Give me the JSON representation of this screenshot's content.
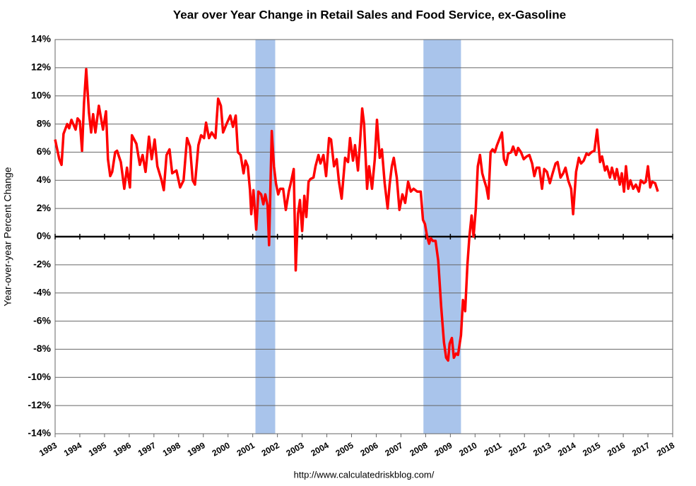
{
  "chart_data": {
    "type": "line",
    "title": "Year over Year Change in Retail Sales and Food Service, ex-Gasoline",
    "y_label": "Year-over-year Percent Change",
    "source": "http://www.calculatedriskblog.com/",
    "color": "#ff0000",
    "recession_color": "#a9c4eb",
    "recessions": [
      [
        2001.11,
        2001.91
      ],
      [
        2007.91,
        2009.43
      ]
    ],
    "grid": true,
    "xlim": [
      1993,
      2018
    ],
    "xticks": [
      1993,
      1994,
      1995,
      1996,
      1997,
      1998,
      1999,
      2000,
      2001,
      2002,
      2003,
      2004,
      2005,
      2006,
      2007,
      2008,
      2009,
      2010,
      2011,
      2012,
      2013,
      2014,
      2015,
      2016,
      2017,
      2018
    ],
    "ylim": [
      -14,
      14
    ],
    "yticks": [
      {
        "value": -14,
        "label": "-14%"
      },
      {
        "value": -12,
        "label": "-12%"
      },
      {
        "value": -10,
        "label": "-10%"
      },
      {
        "value": -8,
        "label": "-8%"
      },
      {
        "value": -6,
        "label": "-6%"
      },
      {
        "value": -4,
        "label": "-4%"
      },
      {
        "value": -2,
        "label": "-2%"
      },
      {
        "value": 0,
        "label": "0%"
      },
      {
        "value": 2,
        "label": "2%"
      },
      {
        "value": 4,
        "label": "4%"
      },
      {
        "value": 6,
        "label": "6%"
      },
      {
        "value": 8,
        "label": "8%"
      },
      {
        "value": 10,
        "label": "10%"
      },
      {
        "value": 12,
        "label": "12%"
      },
      {
        "value": 14,
        "label": "14%"
      }
    ],
    "x": [
      1993.0,
      1993.17,
      1993.26,
      1993.34,
      1993.49,
      1993.57,
      1993.66,
      1993.83,
      1993.91,
      1994.0,
      1994.09,
      1994.17,
      1994.26,
      1994.37,
      1994.46,
      1994.54,
      1994.63,
      1994.77,
      1994.94,
      1995.06,
      1995.14,
      1995.23,
      1995.31,
      1995.43,
      1995.51,
      1995.66,
      1995.8,
      1995.91,
      1996.03,
      1996.11,
      1996.29,
      1996.43,
      1996.54,
      1996.66,
      1996.8,
      1996.91,
      1997.03,
      1997.14,
      1997.31,
      1997.4,
      1997.51,
      1997.63,
      1997.74,
      1997.91,
      1998.06,
      1998.2,
      1998.34,
      1998.46,
      1998.57,
      1998.66,
      1998.8,
      1998.91,
      1999.03,
      1999.11,
      1999.23,
      1999.34,
      1999.49,
      1999.6,
      1999.71,
      1999.8,
      1999.94,
      2000.09,
      2000.2,
      2000.31,
      2000.4,
      2000.51,
      2000.63,
      2000.71,
      2000.8,
      2000.89,
      2000.94,
      2001.03,
      2001.14,
      2001.23,
      2001.34,
      2001.43,
      2001.51,
      2001.6,
      2001.66,
      2001.77,
      2001.86,
      2001.94,
      2002.03,
      2002.11,
      2002.23,
      2002.34,
      2002.46,
      2002.54,
      2002.66,
      2002.74,
      2002.83,
      2002.91,
      2003.0,
      2003.09,
      2003.17,
      2003.26,
      2003.34,
      2003.46,
      2003.54,
      2003.66,
      2003.74,
      2003.86,
      2003.97,
      2004.09,
      2004.17,
      2004.29,
      2004.4,
      2004.49,
      2004.6,
      2004.74,
      2004.86,
      2004.94,
      2005.06,
      2005.14,
      2005.26,
      2005.34,
      2005.43,
      2005.51,
      2005.63,
      2005.71,
      2005.83,
      2005.94,
      2006.03,
      2006.14,
      2006.23,
      2006.34,
      2006.46,
      2006.54,
      2006.63,
      2006.71,
      2006.83,
      2006.94,
      2007.06,
      2007.17,
      2007.29,
      2007.4,
      2007.51,
      2007.66,
      2007.8,
      2007.89,
      2007.97,
      2008.06,
      2008.14,
      2008.2,
      2008.29,
      2008.4,
      2008.51,
      2008.63,
      2008.74,
      2008.83,
      2008.91,
      2008.97,
      2009.06,
      2009.14,
      2009.23,
      2009.31,
      2009.43,
      2009.51,
      2009.6,
      2009.69,
      2009.77,
      2009.86,
      2009.94,
      2010.03,
      2010.11,
      2010.2,
      2010.29,
      2010.37,
      2010.46,
      2010.54,
      2010.63,
      2010.71,
      2010.8,
      2010.89,
      2011.0,
      2011.09,
      2011.17,
      2011.26,
      2011.34,
      2011.46,
      2011.54,
      2011.66,
      2011.74,
      2011.86,
      2011.97,
      2012.09,
      2012.2,
      2012.31,
      2012.4,
      2012.49,
      2012.6,
      2012.71,
      2012.8,
      2012.91,
      2013.03,
      2013.14,
      2013.26,
      2013.34,
      2013.46,
      2013.57,
      2013.66,
      2013.77,
      2013.89,
      2013.97,
      2014.09,
      2014.2,
      2014.29,
      2014.4,
      2014.51,
      2014.6,
      2014.71,
      2014.83,
      2014.94,
      2015.06,
      2015.14,
      2015.26,
      2015.34,
      2015.46,
      2015.54,
      2015.66,
      2015.74,
      2015.86,
      2015.94,
      2016.03,
      2016.11,
      2016.2,
      2016.29,
      2016.4,
      2016.51,
      2016.63,
      2016.71,
      2016.83,
      2016.91,
      2017.0,
      2017.09,
      2017.17,
      2017.29,
      2017.4
    ],
    "values": [
      6.9,
      5.5,
      5.1,
      7.3,
      8.0,
      7.7,
      8.3,
      7.6,
      8.4,
      8.2,
      6.1,
      9.5,
      11.9,
      8.8,
      7.4,
      8.7,
      7.4,
      9.3,
      7.6,
      8.9,
      5.5,
      4.3,
      4.6,
      6.0,
      6.1,
      5.3,
      3.4,
      4.9,
      3.5,
      7.2,
      6.6,
      5.1,
      5.8,
      4.6,
      7.1,
      5.5,
      6.9,
      5.0,
      4.0,
      3.3,
      5.8,
      6.2,
      4.5,
      4.7,
      3.5,
      4.0,
      7.0,
      6.4,
      4.0,
      3.7,
      6.5,
      7.2,
      7.0,
      8.1,
      7.0,
      7.4,
      7.0,
      9.8,
      9.3,
      7.4,
      8.0,
      8.6,
      7.8,
      8.6,
      6.0,
      5.8,
      4.5,
      5.4,
      5.0,
      3.3,
      1.6,
      3.3,
      0.5,
      3.2,
      3.0,
      2.3,
      3.0,
      2.2,
      -0.6,
      7.5,
      5.0,
      3.8,
      3.0,
      3.4,
      3.4,
      1.9,
      3.2,
      3.8,
      4.8,
      -2.4,
      1.6,
      2.6,
      0.4,
      2.9,
      1.4,
      3.9,
      4.1,
      4.2,
      5.0,
      5.8,
      5.2,
      5.8,
      4.3,
      7.0,
      6.9,
      5.0,
      5.5,
      3.9,
      2.7,
      5.6,
      5.3,
      7.0,
      5.4,
      6.5,
      4.7,
      6.6,
      9.1,
      8.0,
      3.4,
      5.0,
      3.4,
      5.5,
      8.3,
      5.6,
      6.2,
      3.8,
      2.0,
      3.7,
      5.0,
      5.6,
      4.2,
      1.9,
      3.0,
      2.4,
      3.9,
      3.2,
      3.4,
      3.2,
      3.2,
      1.2,
      0.9,
      0.0,
      -0.5,
      -0.1,
      -0.3,
      -0.3,
      -1.7,
      -5.0,
      -7.5,
      -8.6,
      -8.8,
      -7.6,
      -7.2,
      -8.6,
      -8.3,
      -8.4,
      -7.0,
      -4.5,
      -5.3,
      -2.0,
      0.0,
      1.5,
      0.0,
      2.0,
      5.0,
      5.8,
      4.5,
      4.0,
      3.5,
      2.7,
      6.0,
      6.2,
      6.0,
      6.5,
      7.0,
      7.4,
      5.5,
      5.1,
      5.9,
      6.0,
      6.4,
      5.8,
      6.3,
      6.0,
      5.5,
      5.7,
      5.8,
      5.2,
      4.3,
      4.9,
      4.9,
      3.4,
      4.8,
      4.6,
      3.8,
      4.5,
      5.2,
      5.3,
      4.2,
      4.5,
      4.9,
      4.0,
      3.4,
      1.6,
      4.6,
      5.6,
      5.2,
      5.4,
      5.9,
      5.8,
      6.0,
      6.1,
      7.6,
      5.3,
      5.7,
      4.7,
      5.0,
      4.2,
      4.9,
      4.1,
      4.8,
      3.7,
      4.5,
      3.2,
      5.0,
      3.4,
      4.0,
      3.4,
      3.7,
      3.2,
      4.0,
      3.8,
      3.9,
      5.0,
      3.5,
      3.9,
      3.8,
      3.2
    ]
  }
}
